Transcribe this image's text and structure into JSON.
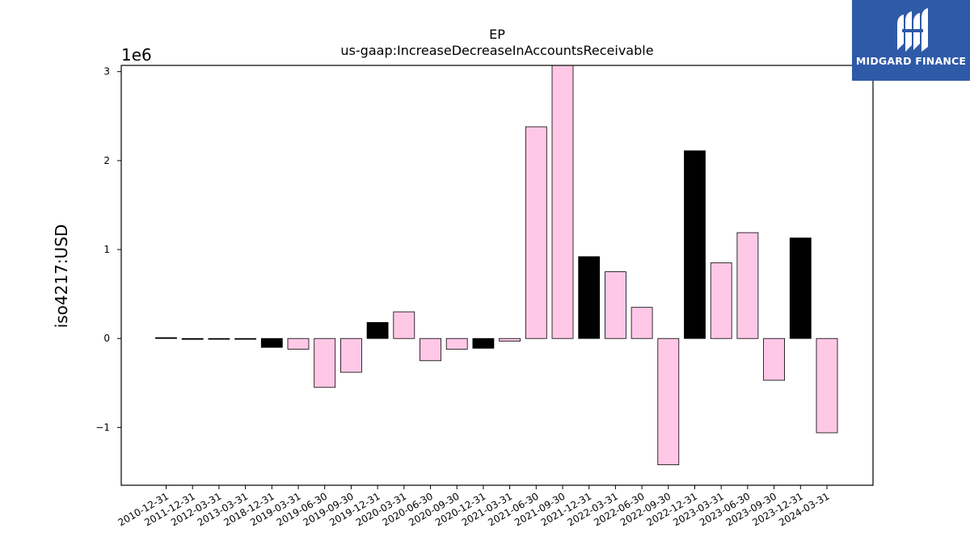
{
  "chart_data": {
    "type": "bar",
    "title": "EP",
    "subtitle": "us-gaap:IncreaseDecreaseInAccountsReceivable",
    "xlabel": "",
    "ylabel": "iso4217:USD",
    "y_offset_label": "1e6",
    "ylim": [
      -1.65,
      3.07
    ],
    "yticks": [
      -1,
      0,
      1,
      2,
      3
    ],
    "ytick_labels": [
      "−1",
      "0",
      "1",
      "2",
      "3"
    ],
    "grid": false,
    "categories": [
      "2010-12-31",
      "2011-12-31",
      "2012-03-31",
      "2013-03-31",
      "2018-12-31",
      "2019-03-31",
      "2019-06-30",
      "2019-09-30",
      "2019-12-31",
      "2020-03-31",
      "2020-06-30",
      "2020-09-30",
      "2020-12-31",
      "2021-03-31",
      "2021-06-30",
      "2021-09-30",
      "2021-12-31",
      "2022-03-31",
      "2022-06-30",
      "2022-09-30",
      "2022-12-31",
      "2023-03-31",
      "2023-06-30",
      "2023-09-30",
      "2023-12-31",
      "2024-03-31"
    ],
    "values": [
      0.01,
      -0.01,
      0.0,
      0.0,
      -0.1,
      -0.12,
      -0.55,
      -0.38,
      0.18,
      0.3,
      -0.25,
      -0.12,
      -0.11,
      -0.03,
      2.38,
      3.07,
      0.92,
      0.75,
      0.35,
      -1.42,
      2.11,
      0.85,
      1.19,
      -0.47,
      1.13,
      -1.06
    ],
    "bar_colors": [
      "#000000",
      "#000000",
      "#000000",
      "#000000",
      "#000000",
      "#ffc8e6",
      "#ffc8e6",
      "#ffc8e6",
      "#000000",
      "#ffc8e6",
      "#ffc8e6",
      "#ffc8e6",
      "#000000",
      "#ffc8e6",
      "#ffc8e6",
      "#ffc8e6",
      "#000000",
      "#ffc8e6",
      "#ffc8e6",
      "#ffc8e6",
      "#000000",
      "#ffc8e6",
      "#ffc8e6",
      "#ffc8e6",
      "#000000",
      "#ffc8e6"
    ]
  },
  "logo": {
    "text": "MIDGARD FINANCE",
    "background": "#2f5aa8"
  }
}
